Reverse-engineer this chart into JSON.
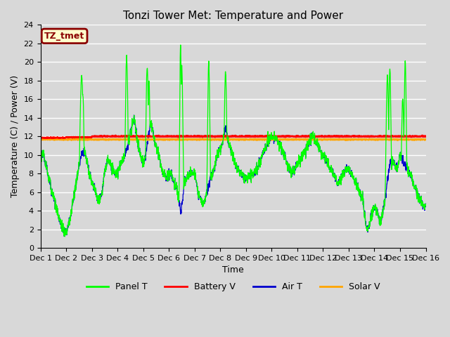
{
  "title": "Tonzi Tower Met: Temperature and Power",
  "xlabel": "Time",
  "ylabel": "Temperature (C) / Power (V)",
  "ylim": [
    0,
    24
  ],
  "xlim": [
    0,
    15
  ],
  "xtick_labels": [
    "Dec 1",
    "Dec 2",
    "Dec 3",
    "Dec 4",
    "Dec 5",
    "Dec 6",
    "Dec 7",
    "Dec 8",
    "Dec 9",
    "Dec 10",
    "Dec 11",
    "Dec 12",
    "Dec 13",
    "Dec 14",
    "Dec 15",
    "Dec 16"
  ],
  "xtick_positions": [
    0,
    1,
    2,
    3,
    4,
    5,
    6,
    7,
    8,
    9,
    10,
    11,
    12,
    13,
    14,
    15
  ],
  "ytick_labels": [
    "0",
    "2",
    "4",
    "6",
    "8",
    "10",
    "12",
    "14",
    "16",
    "18",
    "20",
    "22",
    "24"
  ],
  "ytick_positions": [
    0,
    2,
    4,
    6,
    8,
    10,
    12,
    14,
    16,
    18,
    20,
    22,
    24
  ],
  "background_color": "#d8d8d8",
  "plot_bg_color": "#d8d8d8",
  "grid_color": "#ffffff",
  "label_box_text": "TZ_tmet",
  "label_box_facecolor": "#ffffcc",
  "label_box_edgecolor": "#8b0000",
  "legend_items": [
    "Panel T",
    "Battery V",
    "Air T",
    "Solar V"
  ],
  "legend_colors": [
    "#00ff00",
    "#ff0000",
    "#0000cd",
    "#ffa500"
  ],
  "battery_v": 12.0,
  "solar_v": 11.65,
  "title_fontsize": 11,
  "axis_fontsize": 9,
  "tick_fontsize": 8
}
